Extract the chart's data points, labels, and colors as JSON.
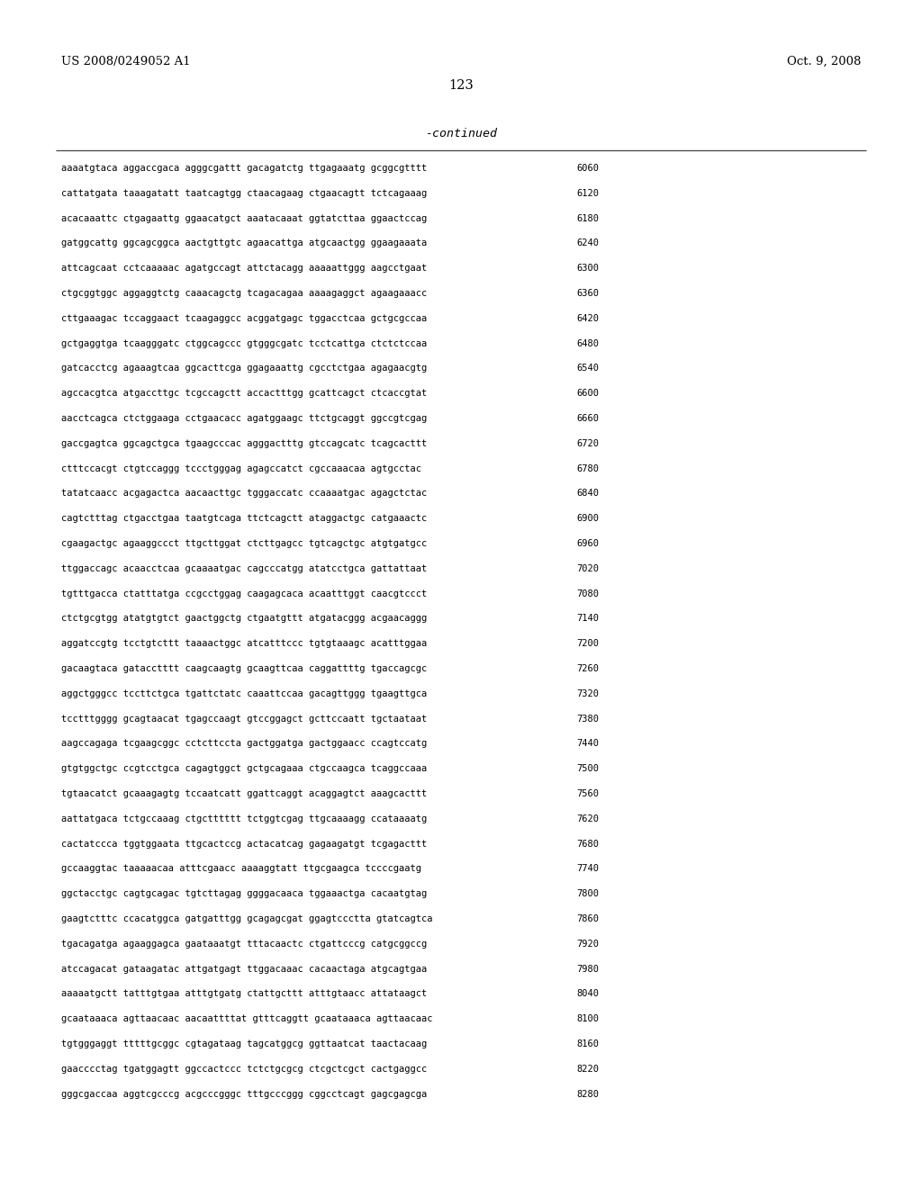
{
  "header_left": "US 2008/0249052 A1",
  "header_right": "Oct. 9, 2008",
  "page_number": "123",
  "continued_label": "-continued",
  "background_color": "#ffffff",
  "text_color": "#000000",
  "seq_font_size": 7.5,
  "header_font_size": 9.5,
  "page_num_font_size": 10.5,
  "continued_font_size": 9.5,
  "sequence_lines": [
    [
      "aaaatgtaca aggaccgaca agggcgattt gacagatctg ttgagaaatg gcggcgtttt",
      "6060"
    ],
    [
      "cattatgata taaagatatt taatcagtgg ctaacagaag ctgaacagtt tctcagaaag",
      "6120"
    ],
    [
      "acacaaattc ctgagaattg ggaacatgct aaatacaaat ggtatcttaa ggaactccag",
      "6180"
    ],
    [
      "gatggcattg ggcagcggca aactgttgtc agaacattga atgcaactgg ggaagaaata",
      "6240"
    ],
    [
      "attcagcaat cctcaaaaac agatgccagt attctacagg aaaaattggg aagcctgaat",
      "6300"
    ],
    [
      "ctgcggtggc aggaggtctg caaacagctg tcagacagaa aaaagaggct agaagaaacc",
      "6360"
    ],
    [
      "cttgaaagac tccaggaact tcaagaggcc acggatgagc tggacctcaa gctgcgccaa",
      "6420"
    ],
    [
      "gctgaggtga tcaagggatc ctggcagccc gtgggcgatc tcctcattga ctctctccaa",
      "6480"
    ],
    [
      "gatcacctcg agaaagtcaa ggcacttcga ggagaaattg cgcctctgaa agagaacgtg",
      "6540"
    ],
    [
      "agccacgtca atgaccttgc tcgccagctt accactttgg gcattcagct ctcaccgtat",
      "6600"
    ],
    [
      "aacctcagca ctctggaaga cctgaacacc agatggaagc ttctgcaggt ggccgtcgag",
      "6660"
    ],
    [
      "gaccgagtca ggcagctgca tgaagcccac agggactttg gtccagcatc tcagcacttt",
      "6720"
    ],
    [
      "ctttccacgt ctgtccaggg tccctgggag agagccatct cgccaaacaa agtgcctac",
      "6780"
    ],
    [
      "tatatcaacc acgagactca aacaacttgc tgggaccatc ccaaaatgac agagctctac",
      "6840"
    ],
    [
      "cagtctttag ctgacctgaa taatgtcaga ttctcagctt ataggactgc catgaaactc",
      "6900"
    ],
    [
      "cgaagactgc agaaggccct ttgcttggat ctcttgagcc tgtcagctgc atgtgatgcc",
      "6960"
    ],
    [
      "ttggaccagc acaacctcaa gcaaaatgac cagcccatgg atatcctgca gattattaat",
      "7020"
    ],
    [
      "tgtttgacca ctatttatga ccgcctggag caagagcaca acaatttggt caacgtccct",
      "7080"
    ],
    [
      "ctctgcgtgg atatgtgtct gaactggctg ctgaatgttt atgatacggg acgaacaggg",
      "7140"
    ],
    [
      "aggatccgtg tcctgtcttt taaaactggc atcatttccc tgtgtaaagc acatttggaa",
      "7200"
    ],
    [
      "gacaagtaca gatacctttt caagcaagtg gcaagttcaa caggattttg tgaccagcgc",
      "7260"
    ],
    [
      "aggctgggcc tccttctgca tgattctatc caaattccaa gacagttggg tgaagttgca",
      "7320"
    ],
    [
      "tcctttgggg gcagtaacat tgagccaagt gtccggagct gcttccaatt tgctaataat",
      "7380"
    ],
    [
      "aagccagaga tcgaagcggc cctcttccta gactggatga gactggaacc ccagtccatg",
      "7440"
    ],
    [
      "gtgtggctgc ccgtcctgca cagagtggct gctgcagaaa ctgccaagca tcaggccaaa",
      "7500"
    ],
    [
      "tgtaacatct gcaaagagtg tccaatcatt ggattcaggt acaggagtct aaagcacttt",
      "7560"
    ],
    [
      "aattatgaca tctgccaaag ctgctttttt tctggtcgag ttgcaaaagg ccataaaatg",
      "7620"
    ],
    [
      "cactatccca tggtggaata ttgcactccg actacatcag gagaagatgt tcgagacttt",
      "7680"
    ],
    [
      "gccaaggtac taaaaacaa atttcgaacc aaaaggtatt ttgcgaagca tccccgaatg",
      "7740"
    ],
    [
      "ggctacctgc cagtgcagac tgtcttagag ggggacaaca tggaaactga cacaatgtag",
      "7800"
    ],
    [
      "gaagtctttc ccacatggca gatgatttgg gcagagcgat ggagtccctta gtatcagtca",
      "7860"
    ],
    [
      "tgacagatga agaaggagca gaataaatgt tttacaactc ctgattcccg catgcggccg",
      "7920"
    ],
    [
      "atccagacat gataagatac attgatgagt ttggacaaac cacaactaga atgcagtgaa",
      "7980"
    ],
    [
      "aaaaatgctt tatttgtgaa atttgtgatg ctattgcttt atttgtaacc attataagct",
      "8040"
    ],
    [
      "gcaataaaca agttaacaac aacaattttat gtttcaggtt gcaataaaca agttaacaac",
      "8100"
    ],
    [
      "tgtgggaggt tttttgcggc cgtagataag tagcatggcg ggttaatcat taactacaag",
      "8160"
    ],
    [
      "gaacccctag tgatggagtt ggccactccc tctctgcgcg ctcgctcgct cactgaggcc",
      "8220"
    ],
    [
      "gggcgaccaa aggtcgcccg acgcccgggc tttgcccggg cggcctcagt gagcgagcga",
      "8280"
    ]
  ]
}
